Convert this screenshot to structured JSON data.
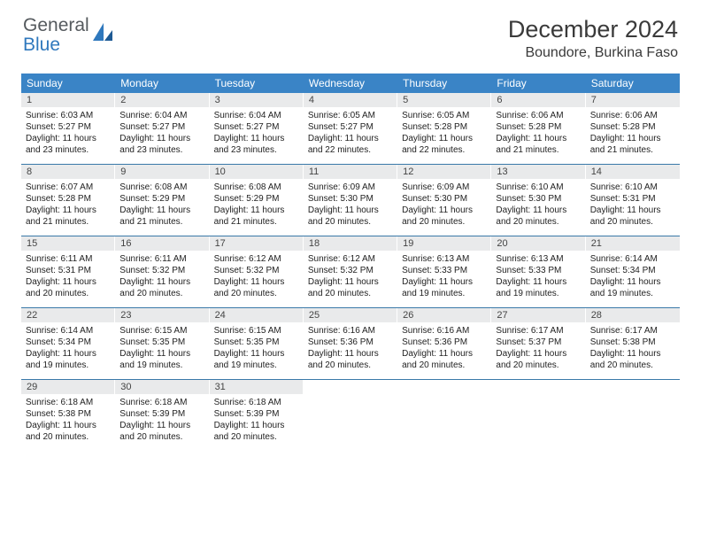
{
  "logo": {
    "line1": "General",
    "line2": "Blue"
  },
  "title": "December 2024",
  "location": "Boundore, Burkina Faso",
  "weekdays": [
    "Sunday",
    "Monday",
    "Tuesday",
    "Wednesday",
    "Thursday",
    "Friday",
    "Saturday"
  ],
  "colors": {
    "header_bar": "#3a84c6",
    "row_divider": "#3a79a9",
    "day_num_bg": "#e9eaeb",
    "logo_gray": "#555a5e",
    "logo_blue": "#2f78bd"
  },
  "weeks": [
    [
      {
        "n": "1",
        "sunrise": "Sunrise: 6:03 AM",
        "sunset": "Sunset: 5:27 PM",
        "daylight": "Daylight: 11 hours and 23 minutes."
      },
      {
        "n": "2",
        "sunrise": "Sunrise: 6:04 AM",
        "sunset": "Sunset: 5:27 PM",
        "daylight": "Daylight: 11 hours and 23 minutes."
      },
      {
        "n": "3",
        "sunrise": "Sunrise: 6:04 AM",
        "sunset": "Sunset: 5:27 PM",
        "daylight": "Daylight: 11 hours and 23 minutes."
      },
      {
        "n": "4",
        "sunrise": "Sunrise: 6:05 AM",
        "sunset": "Sunset: 5:27 PM",
        "daylight": "Daylight: 11 hours and 22 minutes."
      },
      {
        "n": "5",
        "sunrise": "Sunrise: 6:05 AM",
        "sunset": "Sunset: 5:28 PM",
        "daylight": "Daylight: 11 hours and 22 minutes."
      },
      {
        "n": "6",
        "sunrise": "Sunrise: 6:06 AM",
        "sunset": "Sunset: 5:28 PM",
        "daylight": "Daylight: 11 hours and 21 minutes."
      },
      {
        "n": "7",
        "sunrise": "Sunrise: 6:06 AM",
        "sunset": "Sunset: 5:28 PM",
        "daylight": "Daylight: 11 hours and 21 minutes."
      }
    ],
    [
      {
        "n": "8",
        "sunrise": "Sunrise: 6:07 AM",
        "sunset": "Sunset: 5:28 PM",
        "daylight": "Daylight: 11 hours and 21 minutes."
      },
      {
        "n": "9",
        "sunrise": "Sunrise: 6:08 AM",
        "sunset": "Sunset: 5:29 PM",
        "daylight": "Daylight: 11 hours and 21 minutes."
      },
      {
        "n": "10",
        "sunrise": "Sunrise: 6:08 AM",
        "sunset": "Sunset: 5:29 PM",
        "daylight": "Daylight: 11 hours and 21 minutes."
      },
      {
        "n": "11",
        "sunrise": "Sunrise: 6:09 AM",
        "sunset": "Sunset: 5:30 PM",
        "daylight": "Daylight: 11 hours and 20 minutes."
      },
      {
        "n": "12",
        "sunrise": "Sunrise: 6:09 AM",
        "sunset": "Sunset: 5:30 PM",
        "daylight": "Daylight: 11 hours and 20 minutes."
      },
      {
        "n": "13",
        "sunrise": "Sunrise: 6:10 AM",
        "sunset": "Sunset: 5:30 PM",
        "daylight": "Daylight: 11 hours and 20 minutes."
      },
      {
        "n": "14",
        "sunrise": "Sunrise: 6:10 AM",
        "sunset": "Sunset: 5:31 PM",
        "daylight": "Daylight: 11 hours and 20 minutes."
      }
    ],
    [
      {
        "n": "15",
        "sunrise": "Sunrise: 6:11 AM",
        "sunset": "Sunset: 5:31 PM",
        "daylight": "Daylight: 11 hours and 20 minutes."
      },
      {
        "n": "16",
        "sunrise": "Sunrise: 6:11 AM",
        "sunset": "Sunset: 5:32 PM",
        "daylight": "Daylight: 11 hours and 20 minutes."
      },
      {
        "n": "17",
        "sunrise": "Sunrise: 6:12 AM",
        "sunset": "Sunset: 5:32 PM",
        "daylight": "Daylight: 11 hours and 20 minutes."
      },
      {
        "n": "18",
        "sunrise": "Sunrise: 6:12 AM",
        "sunset": "Sunset: 5:32 PM",
        "daylight": "Daylight: 11 hours and 20 minutes."
      },
      {
        "n": "19",
        "sunrise": "Sunrise: 6:13 AM",
        "sunset": "Sunset: 5:33 PM",
        "daylight": "Daylight: 11 hours and 19 minutes."
      },
      {
        "n": "20",
        "sunrise": "Sunrise: 6:13 AM",
        "sunset": "Sunset: 5:33 PM",
        "daylight": "Daylight: 11 hours and 19 minutes."
      },
      {
        "n": "21",
        "sunrise": "Sunrise: 6:14 AM",
        "sunset": "Sunset: 5:34 PM",
        "daylight": "Daylight: 11 hours and 19 minutes."
      }
    ],
    [
      {
        "n": "22",
        "sunrise": "Sunrise: 6:14 AM",
        "sunset": "Sunset: 5:34 PM",
        "daylight": "Daylight: 11 hours and 19 minutes."
      },
      {
        "n": "23",
        "sunrise": "Sunrise: 6:15 AM",
        "sunset": "Sunset: 5:35 PM",
        "daylight": "Daylight: 11 hours and 19 minutes."
      },
      {
        "n": "24",
        "sunrise": "Sunrise: 6:15 AM",
        "sunset": "Sunset: 5:35 PM",
        "daylight": "Daylight: 11 hours and 19 minutes."
      },
      {
        "n": "25",
        "sunrise": "Sunrise: 6:16 AM",
        "sunset": "Sunset: 5:36 PM",
        "daylight": "Daylight: 11 hours and 20 minutes."
      },
      {
        "n": "26",
        "sunrise": "Sunrise: 6:16 AM",
        "sunset": "Sunset: 5:36 PM",
        "daylight": "Daylight: 11 hours and 20 minutes."
      },
      {
        "n": "27",
        "sunrise": "Sunrise: 6:17 AM",
        "sunset": "Sunset: 5:37 PM",
        "daylight": "Daylight: 11 hours and 20 minutes."
      },
      {
        "n": "28",
        "sunrise": "Sunrise: 6:17 AM",
        "sunset": "Sunset: 5:38 PM",
        "daylight": "Daylight: 11 hours and 20 minutes."
      }
    ],
    [
      {
        "n": "29",
        "sunrise": "Sunrise: 6:18 AM",
        "sunset": "Sunset: 5:38 PM",
        "daylight": "Daylight: 11 hours and 20 minutes."
      },
      {
        "n": "30",
        "sunrise": "Sunrise: 6:18 AM",
        "sunset": "Sunset: 5:39 PM",
        "daylight": "Daylight: 11 hours and 20 minutes."
      },
      {
        "n": "31",
        "sunrise": "Sunrise: 6:18 AM",
        "sunset": "Sunset: 5:39 PM",
        "daylight": "Daylight: 11 hours and 20 minutes."
      },
      null,
      null,
      null,
      null
    ]
  ]
}
